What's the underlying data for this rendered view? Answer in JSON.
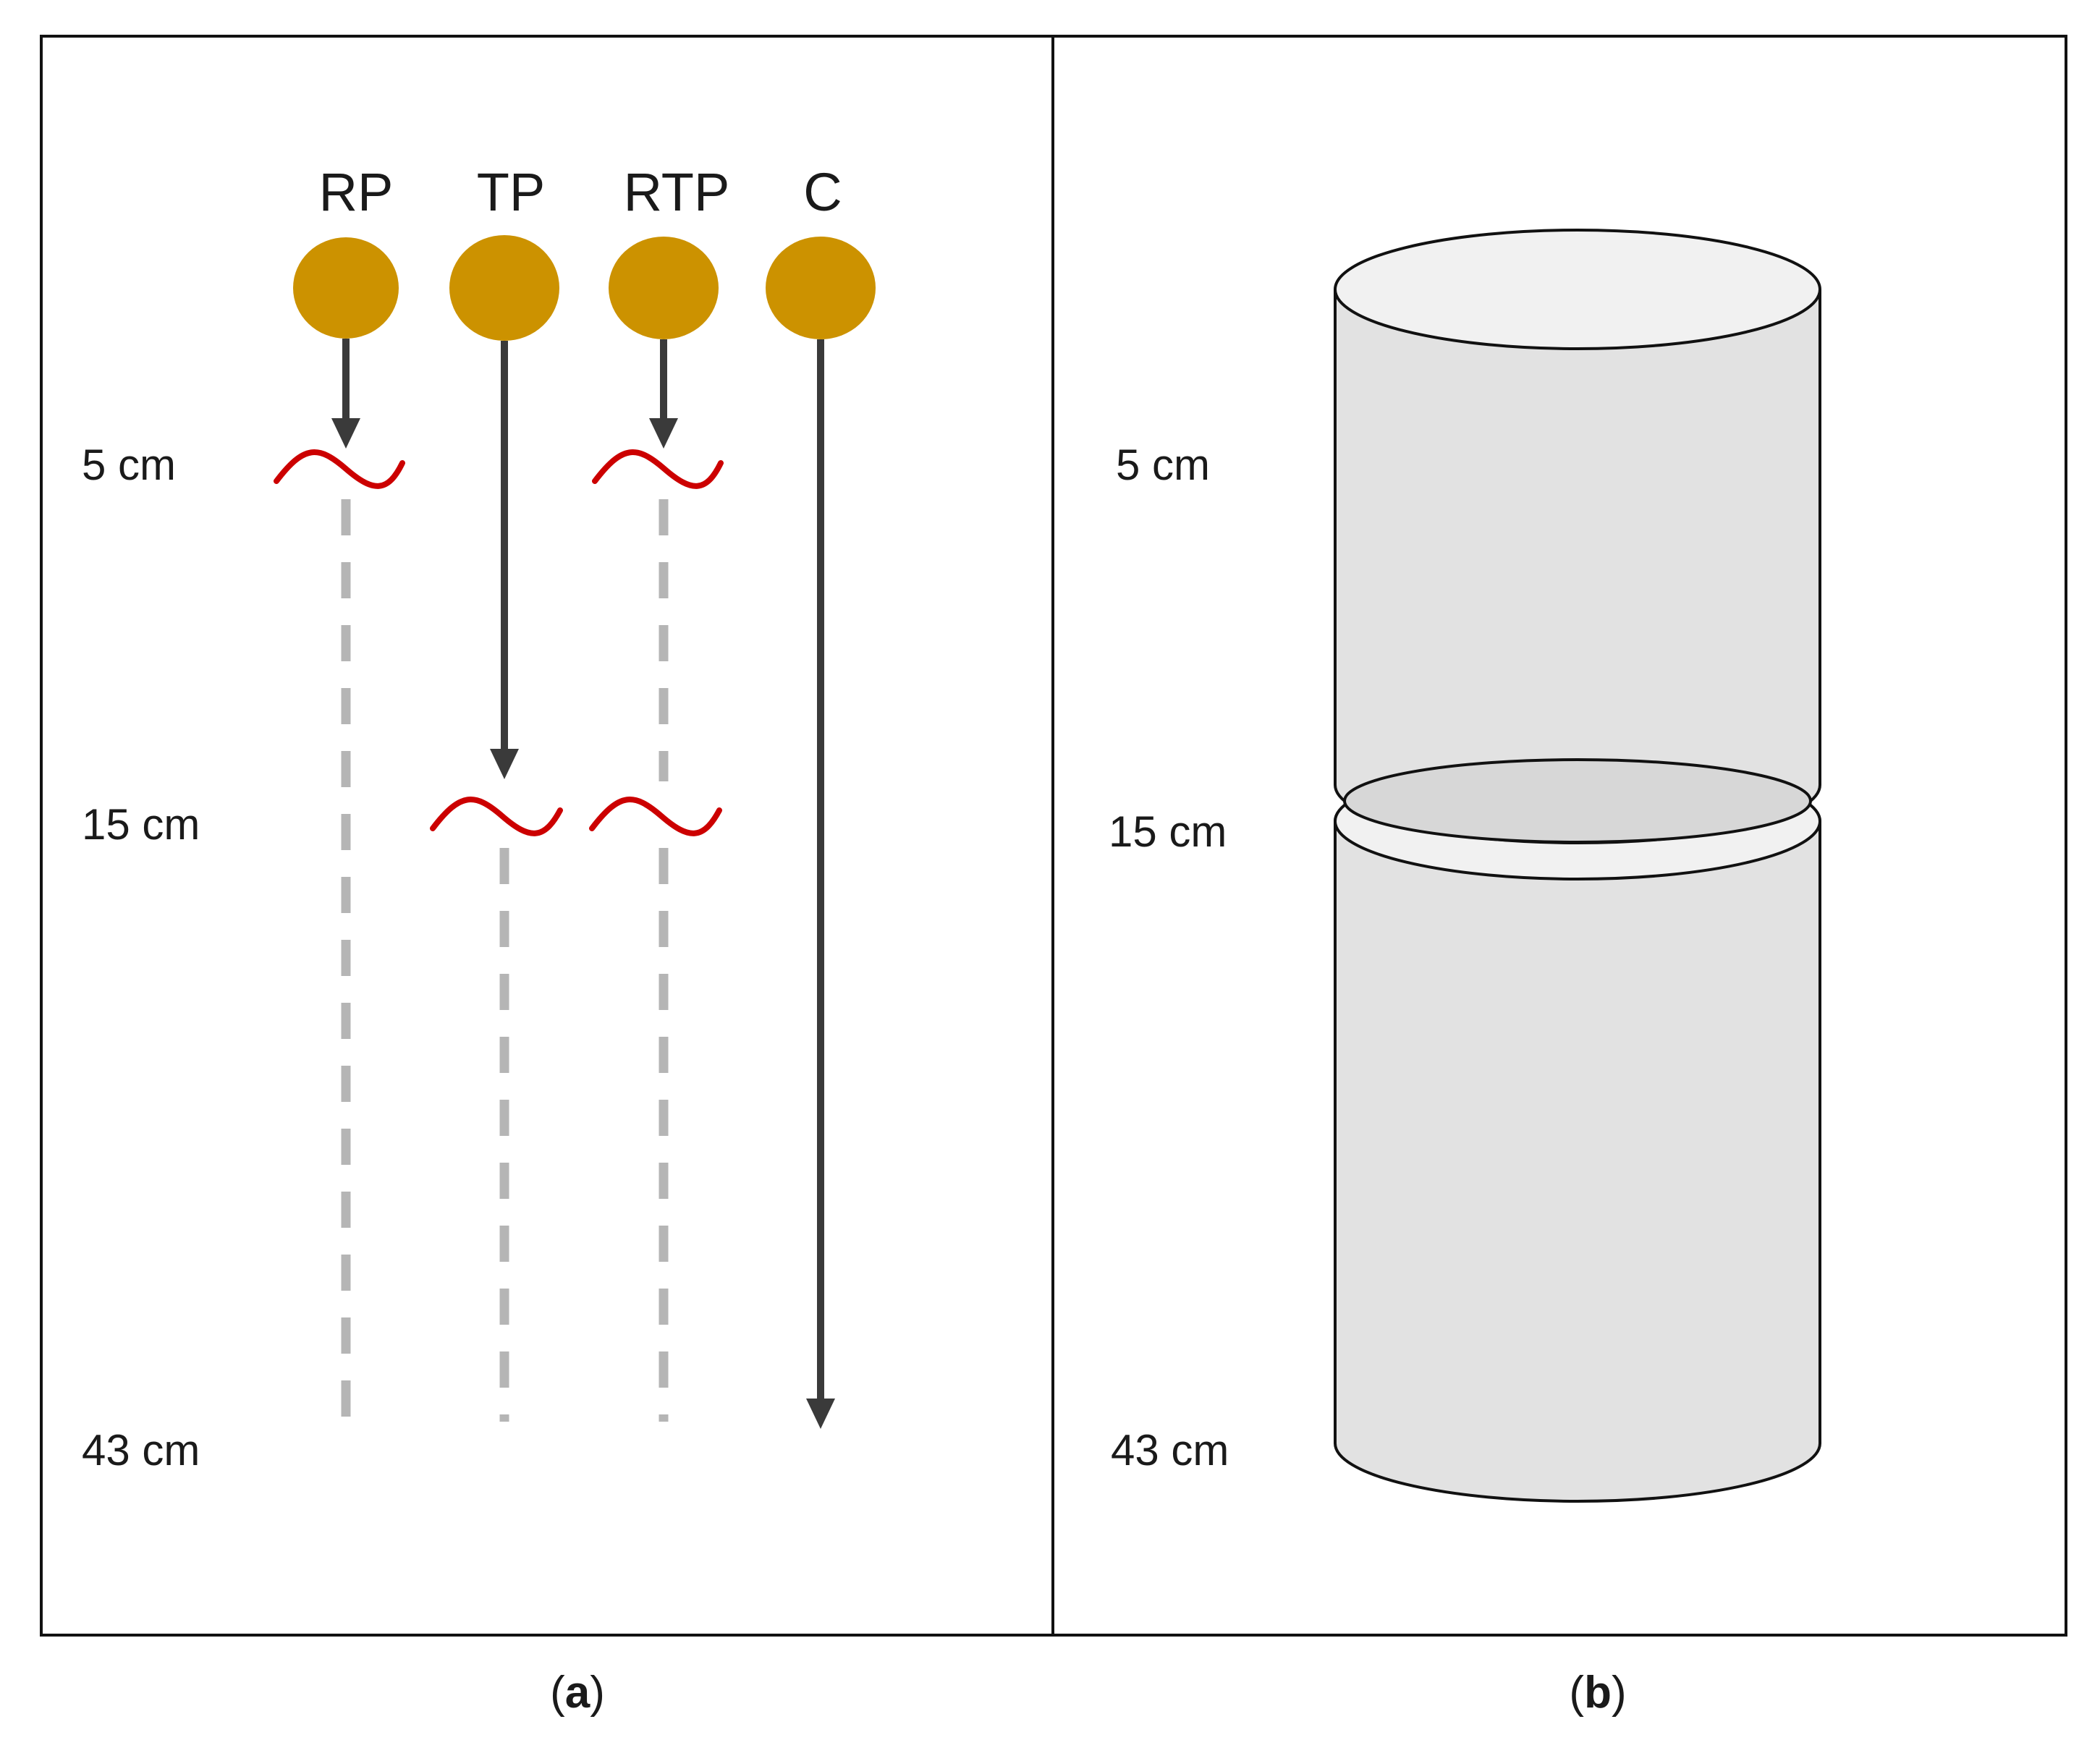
{
  "panel_a": {
    "treatments": [
      {
        "label": "RP",
        "arrow_depth": "5 cm",
        "barrier_depths": [
          "5 cm"
        ]
      },
      {
        "label": "TP",
        "arrow_depth": "15 cm",
        "barrier_depths": [
          "15 cm"
        ]
      },
      {
        "label": "RTP",
        "arrow_depth": "5 cm",
        "barrier_depths": [
          "5 cm",
          "15 cm"
        ]
      },
      {
        "label": "C",
        "arrow_depth": "43 cm",
        "barrier_depths": []
      }
    ],
    "depth_labels": [
      "5 cm",
      "15 cm",
      "43 cm"
    ],
    "caption": {
      "open": "(",
      "letter": "a",
      "close": ")"
    }
  },
  "panel_b": {
    "depth_labels": [
      "5 cm",
      "15 cm",
      "43 cm"
    ],
    "caption": {
      "open": "(",
      "letter": "b",
      "close": ")"
    }
  },
  "colors": {
    "root_ball": "#cc9200",
    "arrow": "#3a3a3a",
    "barrier": "#cc0000",
    "dashed_line": "#b5b5b5",
    "cylinder_fill": "#e2e2e2",
    "cylinder_top": "#f1f1f1",
    "frame": "#111111"
  },
  "icons": {
    "root_ball": "circle",
    "barrier": "wave",
    "soil_column": "cylinder"
  }
}
